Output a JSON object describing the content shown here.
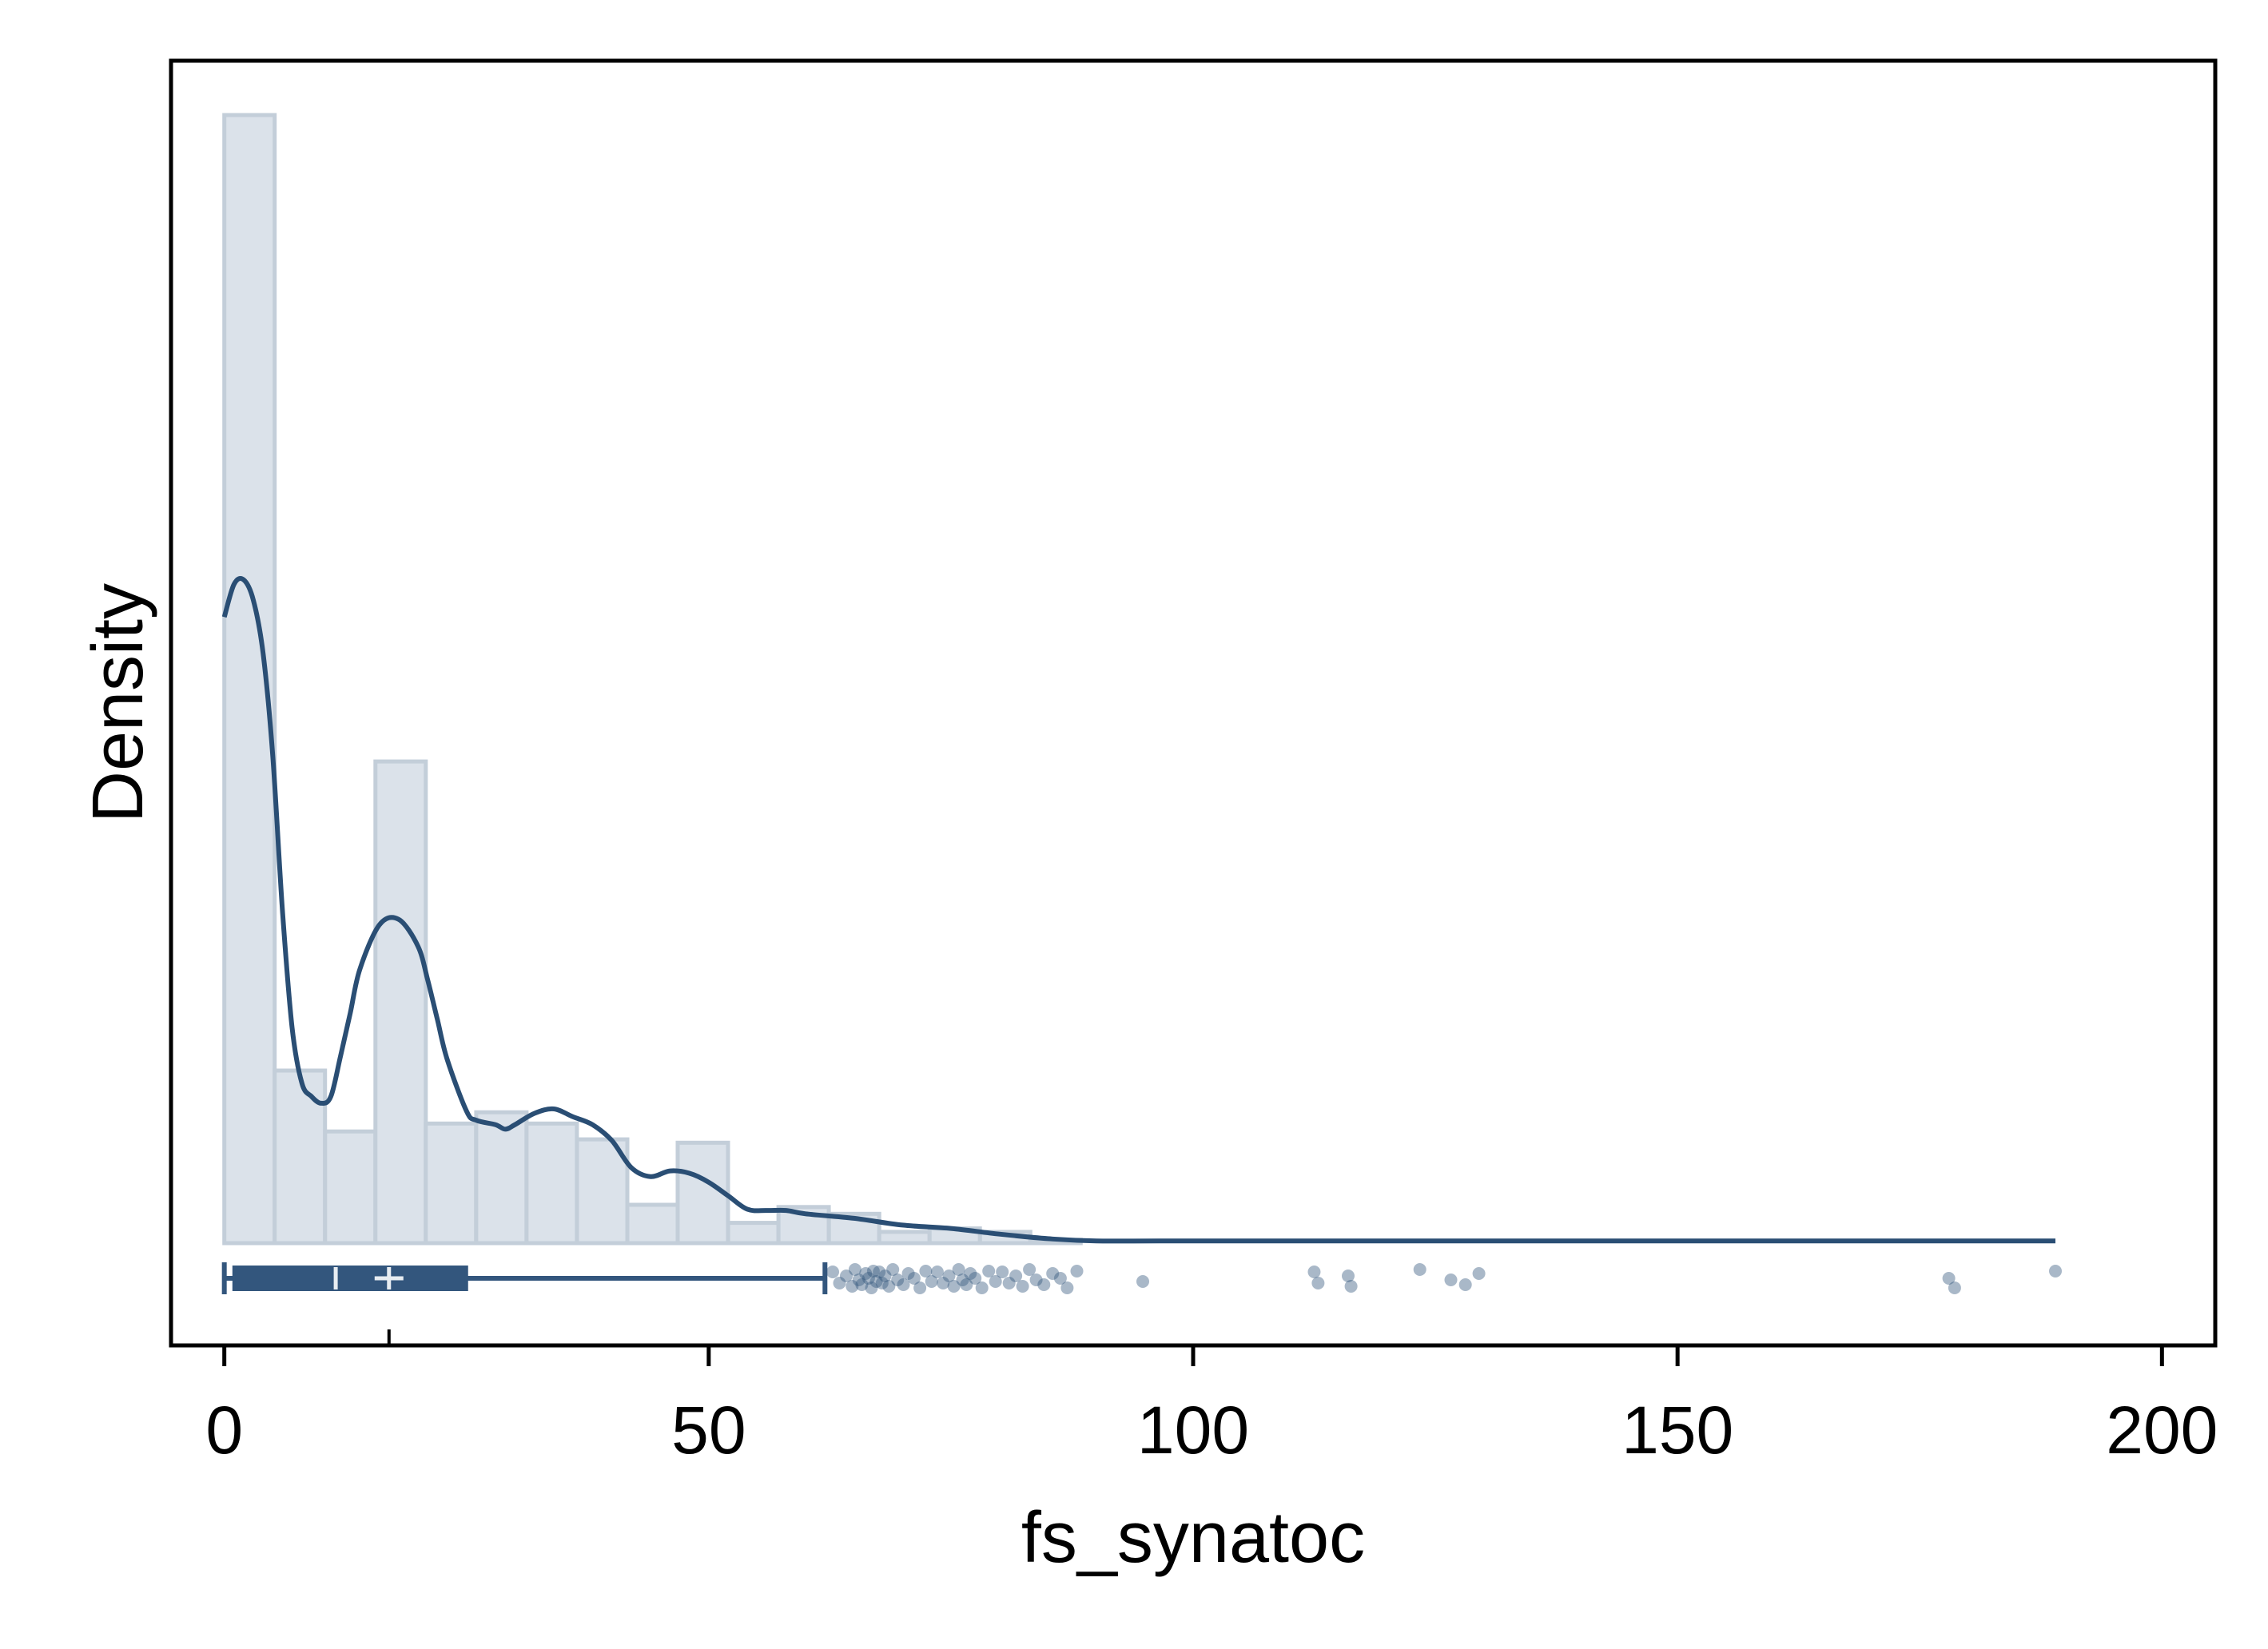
{
  "chart_data": {
    "type": "histogram",
    "title": "",
    "xlabel": "fs_synatoc",
    "ylabel": "Density",
    "xlim": [
      -5.5,
      205.5
    ],
    "xticks": [
      0,
      50,
      100,
      150,
      200
    ],
    "xtick_labels": [
      "0",
      "50",
      "100",
      "150",
      "200"
    ],
    "y_tick_labels_shown": false,
    "grid": false,
    "colors": {
      "bar_fill": "#dbe2ea",
      "bar_stroke": "#c3ced9",
      "line": "#2a4e74",
      "box": "#33567d",
      "points": "#33567d",
      "frame": "#000000"
    },
    "histogram": {
      "bin_width": 5.2,
      "bins": [
        {
          "start": 0.0,
          "height": 1.0
        },
        {
          "start": 5.2,
          "height": 0.153
        },
        {
          "start": 10.4,
          "height": 0.099
        },
        {
          "start": 15.6,
          "height": 0.427
        },
        {
          "start": 20.8,
          "height": 0.106
        },
        {
          "start": 26.0,
          "height": 0.116
        },
        {
          "start": 31.2,
          "height": 0.106
        },
        {
          "start": 36.4,
          "height": 0.092
        },
        {
          "start": 41.6,
          "height": 0.034
        },
        {
          "start": 46.8,
          "height": 0.089
        },
        {
          "start": 52.0,
          "height": 0.018
        },
        {
          "start": 57.2,
          "height": 0.032
        },
        {
          "start": 62.4,
          "height": 0.026
        },
        {
          "start": 67.6,
          "height": 0.01
        },
        {
          "start": 72.8,
          "height": 0.013
        },
        {
          "start": 78.0,
          "height": 0.01
        },
        {
          "start": 83.2,
          "height": 0.003
        }
      ]
    },
    "kde": {
      "x": [
        0,
        1,
        2,
        3,
        4,
        5,
        6,
        7,
        8,
        9,
        10,
        11,
        12,
        13,
        14,
        16,
        18,
        20,
        21,
        22,
        23,
        25,
        26,
        28,
        29,
        30,
        32,
        34,
        36,
        38,
        40,
        42,
        44,
        46,
        48,
        50,
        52,
        54,
        56,
        58,
        60,
        65,
        70,
        75,
        80,
        85,
        90,
        100,
        110,
        120,
        130,
        140,
        150,
        160,
        170,
        180,
        189
      ],
      "y": [
        0.555,
        0.584,
        0.588,
        0.57,
        0.523,
        0.432,
        0.295,
        0.191,
        0.142,
        0.13,
        0.124,
        0.13,
        0.166,
        0.204,
        0.243,
        0.282,
        0.287,
        0.263,
        0.233,
        0.198,
        0.163,
        0.117,
        0.109,
        0.105,
        0.101,
        0.105,
        0.115,
        0.119,
        0.112,
        0.105,
        0.091,
        0.067,
        0.059,
        0.064,
        0.062,
        0.054,
        0.042,
        0.03,
        0.029,
        0.029,
        0.026,
        0.022,
        0.016,
        0.013,
        0.008,
        0.004,
        0.002,
        0.002,
        0.002,
        0.002,
        0.002,
        0.002,
        0.002,
        0.002,
        0.002,
        0.002,
        0.002
      ]
    },
    "boxplot": {
      "whisker_low": 0,
      "q1": 1,
      "median": 11.5,
      "mean": 17,
      "q3": 25,
      "whisker_high": 62
    },
    "outliers": [
      62.8,
      63.5,
      64.2,
      64.8,
      65.1,
      65.5,
      65.8,
      66.2,
      66.5,
      66.8,
      67.0,
      67.3,
      67.6,
      67.9,
      68.2,
      68.6,
      69.0,
      69.5,
      70.1,
      70.6,
      71.2,
      71.8,
      72.4,
      73.0,
      73.6,
      74.2,
      74.8,
      75.3,
      75.8,
      76.2,
      76.6,
      77.0,
      77.5,
      78.2,
      78.9,
      79.6,
      80.3,
      81.0,
      81.7,
      82.4,
      83.1,
      83.8,
      84.6,
      85.5,
      86.3,
      87.0,
      88.0,
      94.8,
      112.5,
      112.9,
      116.0,
      116.3,
      123.4,
      126.6,
      128.1,
      129.5,
      178.0,
      178.6,
      189.0
    ]
  }
}
